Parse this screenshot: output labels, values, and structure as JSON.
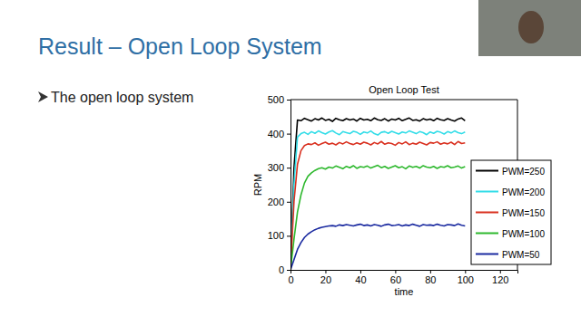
{
  "slide": {
    "title": "Result – Open Loop System",
    "bullets": [
      "The open loop system"
    ]
  },
  "chart_data": {
    "type": "line",
    "title": "Open Loop Test",
    "x_label": "time",
    "y_label": "RPM",
    "x": [
      0,
      2,
      4,
      6,
      8,
      10,
      12,
      14,
      16,
      18,
      20,
      22,
      24,
      26,
      28,
      30,
      32,
      34,
      36,
      38,
      40,
      42,
      44,
      46,
      48,
      50,
      52,
      54,
      56,
      58,
      60,
      62,
      64,
      66,
      68,
      70,
      72,
      74,
      76,
      78,
      80,
      82,
      84,
      86,
      88,
      90,
      92,
      94,
      96,
      98,
      100
    ],
    "series": [
      {
        "name": "PWM=250",
        "color": "#000000",
        "values": [
          0,
          300,
          440,
          438,
          445,
          441,
          437,
          444,
          440,
          446,
          439,
          442,
          436,
          445,
          441,
          438,
          444,
          440,
          443,
          437,
          445,
          440,
          442,
          438,
          446,
          441,
          439,
          444,
          437,
          443,
          440,
          445,
          438,
          442,
          446,
          439,
          441,
          437,
          444,
          440,
          443,
          438,
          445,
          441,
          439,
          444,
          440,
          437,
          443,
          446,
          438
        ]
      },
      {
        "name": "PWM=200",
        "color": "#33dde8",
        "values": [
          0,
          250,
          390,
          400,
          404,
          398,
          406,
          401,
          408,
          403,
          399,
          405,
          409,
          402,
          397,
          406,
          403,
          400,
          407,
          404,
          398,
          405,
          402,
          408,
          400,
          396,
          404,
          406,
          401,
          407,
          403,
          399,
          405,
          402,
          408,
          404,
          400,
          406,
          403,
          397,
          405,
          401,
          407,
          404,
          399,
          406,
          402,
          408,
          403,
          400,
          405
        ]
      },
      {
        "name": "PWM=150",
        "color": "#d9301f",
        "values": [
          0,
          200,
          310,
          350,
          365,
          370,
          368,
          373,
          366,
          371,
          375,
          369,
          372,
          367,
          374,
          370,
          376,
          371,
          368,
          373,
          369,
          375,
          372,
          367,
          374,
          370,
          377,
          369,
          373,
          371,
          366,
          374,
          370,
          376,
          368,
          372,
          369,
          375,
          371,
          367,
          374,
          372,
          376,
          369,
          373,
          370,
          375,
          368,
          377,
          371,
          373
        ]
      },
      {
        "name": "PWM=100",
        "color": "#2db82d",
        "values": [
          0,
          90,
          170,
          220,
          255,
          275,
          285,
          292,
          297,
          300,
          296,
          302,
          299,
          305,
          301,
          297,
          304,
          300,
          306,
          298,
          303,
          301,
          305,
          299,
          303,
          307,
          300,
          304,
          298,
          302,
          306,
          300,
          303,
          297,
          305,
          301,
          304,
          299,
          306,
          302,
          300,
          304,
          298,
          303,
          301,
          306,
          300,
          302,
          305,
          299,
          303
        ]
      },
      {
        "name": "PWM=50",
        "color": "#1a2aa0",
        "values": [
          0,
          30,
          60,
          80,
          95,
          105,
          112,
          118,
          122,
          125,
          127,
          129,
          130,
          128,
          132,
          130,
          133,
          131,
          129,
          132,
          134,
          130,
          132,
          129,
          133,
          131,
          128,
          132,
          134,
          130,
          131,
          133,
          129,
          132,
          130,
          134,
          131,
          128,
          133,
          131,
          132,
          130,
          134,
          131,
          129,
          133,
          132,
          130,
          135,
          131,
          129
        ]
      }
    ],
    "xlim": [
      0,
      130
    ],
    "xticks": [
      0,
      20,
      40,
      60,
      80,
      100,
      120
    ],
    "ylim": [
      0,
      500
    ],
    "yticks": [
      0,
      100,
      200,
      300,
      400,
      500
    ],
    "grid": false,
    "legend": "lower right"
  }
}
